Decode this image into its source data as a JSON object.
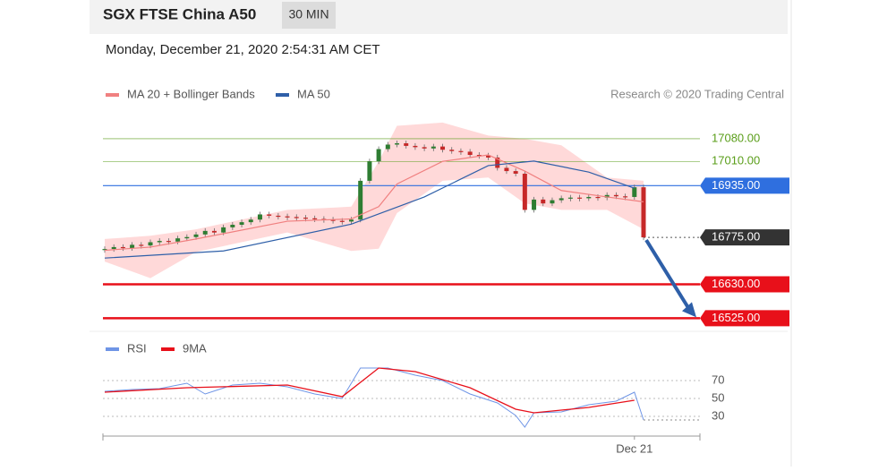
{
  "header": {
    "title": "SGX FTSE China A50",
    "timeframe": "30 MIN",
    "timestamp": "Monday, December 21, 2020 2:54:31 AM CET"
  },
  "chart_data": [
    {
      "type": "candlestick",
      "credit": "Research © 2020 Trading Central",
      "close": [
        16739,
        16745,
        16742,
        16752,
        16750,
        16760,
        16764,
        16762,
        16772,
        16776,
        16784,
        16795,
        16790,
        16806,
        16814,
        16822,
        16830,
        16846,
        16842,
        16840,
        16838,
        16836,
        16834,
        16832,
        16830,
        16826,
        16824,
        16830,
        16950,
        17010,
        17048,
        17062,
        17066,
        17058,
        17054,
        17050,
        17056,
        17046,
        17042,
        17040,
        17030,
        17028,
        17022,
        16990,
        16980,
        16972,
        16860,
        16892,
        16880,
        16890,
        16896,
        16898,
        16896,
        16900,
        16898,
        16906,
        16902,
        16900,
        16930,
        16775
      ],
      "up_color": "#2e7d32",
      "down_color": "#c62828",
      "series": [
        {
          "name": "MA 20 + Bollinger Bands",
          "color": "#f08080",
          "band_color": "#ffd9d9",
          "x": [
            0,
            5,
            10,
            20,
            27,
            30,
            32,
            37,
            42,
            46,
            50,
            55,
            59
          ],
          "values": [
            16735,
            16745,
            16770,
            16825,
            16832,
            16870,
            16940,
            17010,
            17030,
            16980,
            16920,
            16900,
            16885
          ],
          "upper": [
            16770,
            16780,
            16800,
            16860,
            16870,
            17010,
            17120,
            17130,
            17090,
            17080,
            17060,
            16960,
            16950
          ],
          "lower": [
            16700,
            16649,
            16730,
            16790,
            16733,
            16740,
            16850,
            16950,
            16960,
            16880,
            16860,
            16860,
            16800
          ]
        },
        {
          "name": "MA 50",
          "color": "#2e5fa8",
          "x": [
            0,
            13,
            27,
            35,
            42,
            47,
            53,
            58
          ],
          "values": [
            16711,
            16733,
            16816,
            16900,
            16997,
            17011,
            16977,
            16927
          ]
        }
      ],
      "levels": [
        {
          "value": 17080,
          "label": "17080.00",
          "color": "#5a9e1a",
          "style": "thin"
        },
        {
          "value": 17010,
          "label": "17010.00",
          "color": "#5a9e1a",
          "style": "thin"
        },
        {
          "value": 16935,
          "label": "16935.00",
          "color": "#2f6fdf",
          "style": "tag"
        },
        {
          "value": 16775,
          "label": "16775.00",
          "color": "#333333",
          "style": "dotted"
        },
        {
          "value": 16630,
          "label": "16630.00",
          "color": "#e8101a",
          "style": "thick"
        },
        {
          "value": 16525,
          "label": "16525.00",
          "color": "#e8101a",
          "style": "thick"
        }
      ],
      "ylim": [
        16490,
        17163
      ]
    },
    {
      "type": "line",
      "series": [
        {
          "name": "RSI",
          "color": "#6f95e6",
          "x": [
            0,
            3,
            6,
            9,
            11,
            14,
            17,
            20,
            23,
            26,
            28,
            31,
            34,
            37,
            40,
            43,
            45,
            46,
            47,
            50,
            53,
            56,
            58,
            59
          ],
          "values": [
            58,
            60,
            61,
            67,
            55,
            65,
            67,
            63,
            55,
            50,
            84,
            84,
            76,
            70,
            55,
            45,
            31,
            18,
            34,
            35,
            43,
            47,
            57,
            26
          ]
        },
        {
          "name": "9MA",
          "color": "#e8101a",
          "x": [
            0,
            9,
            20,
            26,
            30,
            34,
            40,
            45,
            47,
            53,
            58
          ],
          "values": [
            57,
            62,
            65,
            52,
            84,
            80,
            62,
            38,
            34,
            40,
            48
          ]
        }
      ],
      "ylim": [
        15,
        95
      ],
      "yticks": [
        70,
        50,
        30
      ],
      "xticks": [
        {
          "value": 58,
          "label": "Dec 21"
        }
      ]
    }
  ]
}
